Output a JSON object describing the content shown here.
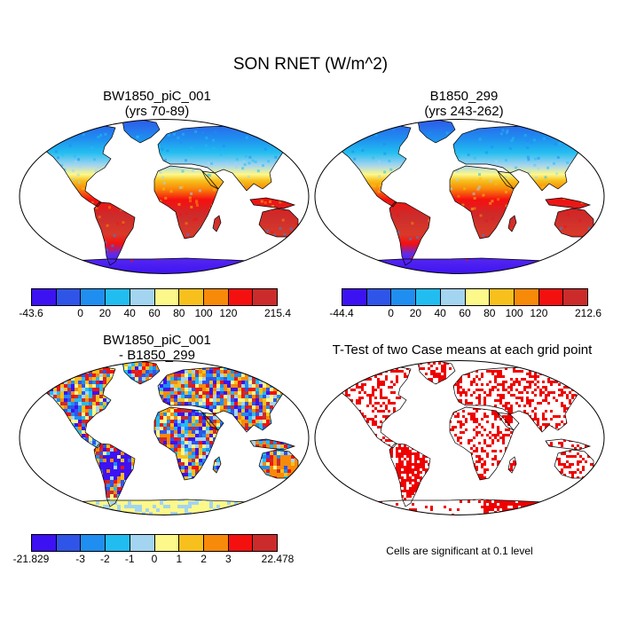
{
  "title": "SON RNET (W/m^2)",
  "panels": [
    {
      "title_line1": "BW1850_piC_001",
      "title_line2": "(yrs 70-89)",
      "colorbar": {
        "colors": [
          "#3d12f2",
          "#2f55e8",
          "#1f8ef0",
          "#22bdf0",
          "#a3d4f0",
          "#fdf88a",
          "#f7c01c",
          "#f88a0a",
          "#f51010",
          "#cc2b2b"
        ],
        "labels": [
          "-43.6",
          "0",
          "20",
          "40",
          "60",
          "80",
          "100",
          "120",
          "215.4"
        ]
      }
    },
    {
      "title_line1": "B1850_299",
      "title_line2": "(yrs 243-262)",
      "colorbar": {
        "colors": [
          "#3d12f2",
          "#2f55e8",
          "#1f8ef0",
          "#22bdf0",
          "#a3d4f0",
          "#fdf88a",
          "#f7c01c",
          "#f88a0a",
          "#f51010",
          "#cc2b2b"
        ],
        "labels": [
          "-44.4",
          "0",
          "20",
          "40",
          "60",
          "80",
          "100",
          "120",
          "212.6"
        ]
      }
    },
    {
      "title_line1": "BW1850_piC_001",
      "title_line2": "- B1850_299",
      "colorbar": {
        "colors": [
          "#3d12f2",
          "#2f55e8",
          "#1f8ef0",
          "#22bdf0",
          "#a3d4f0",
          "#fdf88a",
          "#f7c01c",
          "#f88a0a",
          "#f51010",
          "#cc2b2b"
        ],
        "labels": [
          "-21.829",
          "-3",
          "-2",
          "-1",
          "0",
          "1",
          "2",
          "3",
          "22.478"
        ]
      }
    },
    {
      "title_line1": "T-Test of two Case means at each grid point",
      "note": "Cells are significant at 0.1 level",
      "significance_color": "#ee0000"
    }
  ]
}
